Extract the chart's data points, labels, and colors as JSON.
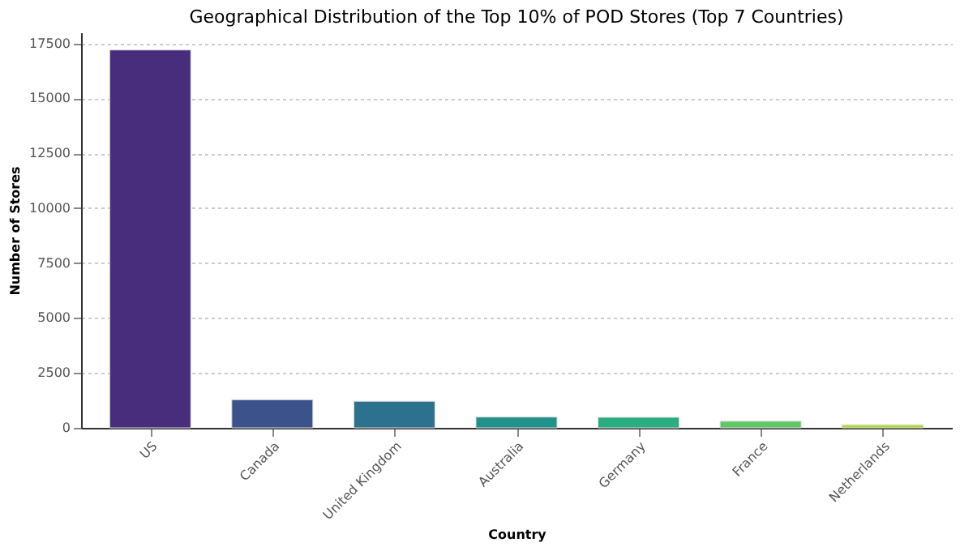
{
  "chart_data": {
    "type": "bar",
    "title": "Geographical Distribution of the Top 10% of POD Stores (Top 7 Countries)",
    "xlabel": "Country",
    "ylabel": "Number of Stores",
    "categories": [
      "US",
      "Canada",
      "United Kingdom",
      "Australia",
      "Germany",
      "France",
      "Netherlands"
    ],
    "values": [
      17200,
      1280,
      1210,
      490,
      480,
      300,
      140
    ],
    "colors": [
      "#472d7b",
      "#3b528b",
      "#2c728e",
      "#21918c",
      "#28ae80",
      "#5ec962",
      "#addc30"
    ],
    "ylim": [
      0,
      18000
    ],
    "yticks": [
      0,
      2500,
      5000,
      7500,
      10000,
      12500,
      15000,
      17500
    ],
    "grid": "y"
  }
}
